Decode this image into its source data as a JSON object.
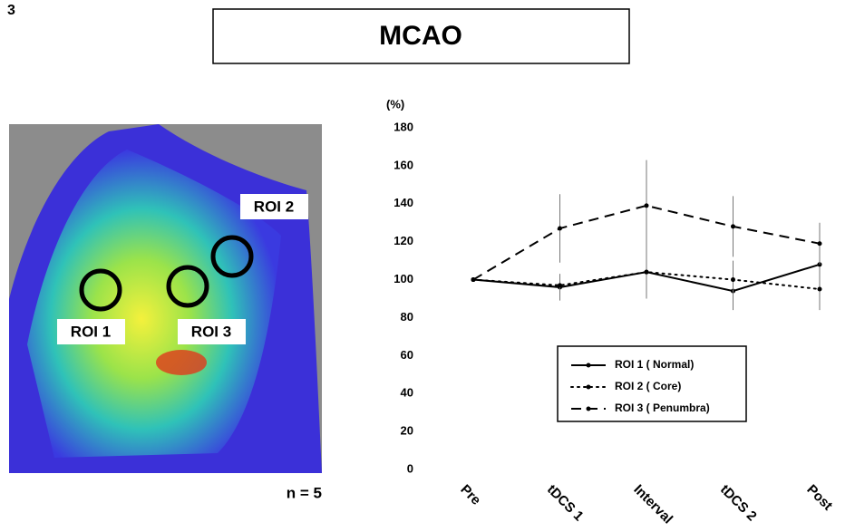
{
  "panel_label": "3",
  "title": "MCAO",
  "image": {
    "labels": [
      "ROI 1",
      "ROI 2",
      "ROI 3"
    ],
    "note": "n = 5"
  },
  "chart_data": {
    "type": "line",
    "y_label": "(%)",
    "categories": [
      "Pre",
      "tDCS 1",
      "Interval",
      "tDCS 2",
      "Post"
    ],
    "series": [
      {
        "name": "ROI 1 ( Normal)",
        "color": "#000000",
        "style": "solid",
        "values": [
          100,
          96,
          104,
          94,
          108
        ],
        "errors": [
          0,
          7,
          14,
          10,
          12
        ]
      },
      {
        "name": "ROI 2 ( Core)",
        "color": "#000000",
        "style": "dotted",
        "values": [
          100,
          97,
          104,
          100,
          95
        ],
        "errors": [
          0,
          6,
          14,
          10,
          11
        ]
      },
      {
        "name": "ROI 3 ( Penumbra)",
        "color": "#000000",
        "style": "dashed",
        "values": [
          100,
          127,
          139,
          128,
          119
        ],
        "errors": [
          0,
          18,
          24,
          16,
          11
        ]
      }
    ],
    "ylim": [
      0,
      180
    ],
    "yticks": [
      0,
      20,
      40,
      60,
      80,
      100,
      120,
      140,
      160,
      180
    ]
  }
}
